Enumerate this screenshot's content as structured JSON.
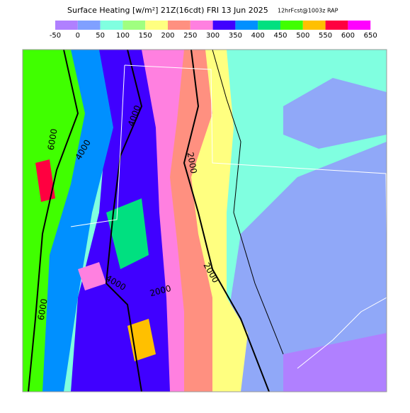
{
  "header": {
    "title": "Surface Heating [w/m²] 21Z(16cdt) FRI 13 Jun 2025",
    "subtitle": "12hrFcst@1003z RAP"
  },
  "colorbar": {
    "ticks": [
      -50,
      0,
      50,
      100,
      150,
      200,
      250,
      300,
      350,
      400,
      450,
      500,
      550,
      600,
      650
    ],
    "colors": [
      "#b080ff",
      "#80a0ff",
      "#80ffe0",
      "#a0ff80",
      "#ffff80",
      "#ff9080",
      "#ff80e0",
      "#4000ff",
      "#0090ff",
      "#00e080",
      "#40ff00",
      "#ffc000",
      "#ff0040",
      "#ff00ff"
    ]
  },
  "contour_labels": [
    "4000",
    "6000",
    "4000",
    "2000",
    "2000",
    "4000",
    "2000",
    "6000"
  ]
}
